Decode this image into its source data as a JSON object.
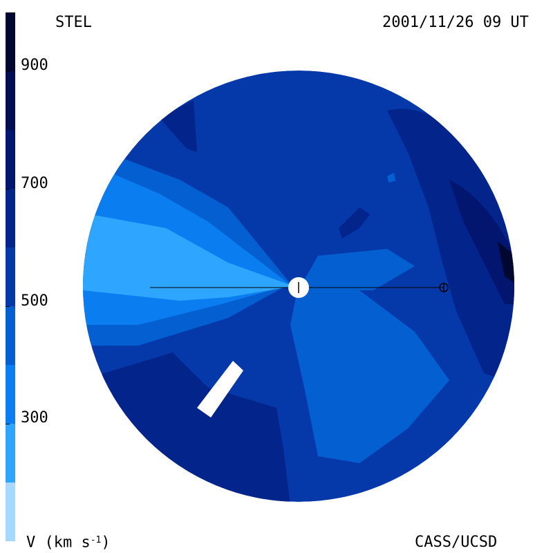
{
  "header": {
    "instrument": "STEL",
    "timestamp": "2001/11/26 09 UT"
  },
  "footer": {
    "unit_label_prefix": "V (km s",
    "unit_label_exp": "-1",
    "unit_label_suffix": ")",
    "credit": "CASS/UCSD"
  },
  "chart_data": {
    "type": "heatmap",
    "title": "",
    "colorbar": {
      "min": 100,
      "max": 1000,
      "ticks": [
        300,
        500,
        700,
        900
      ],
      "tick_labels": [
        "300",
        "500",
        "700",
        "900"
      ],
      "levels": [
        {
          "from": 100,
          "to": 200,
          "color": "#a8d8ff"
        },
        {
          "from": 200,
          "to": 300,
          "color": "#2ea6ff"
        },
        {
          "from": 300,
          "to": 400,
          "color": "#0a7ef0"
        },
        {
          "from": 400,
          "to": 500,
          "color": "#045fd0"
        },
        {
          "from": 500,
          "to": 600,
          "color": "#0538a8"
        },
        {
          "from": 600,
          "to": 700,
          "color": "#03248a"
        },
        {
          "from": 700,
          "to": 800,
          "color": "#021670"
        },
        {
          "from": 800,
          "to": 900,
          "color": "#020e50"
        },
        {
          "from": 900,
          "to": 1000,
          "color": "#010830"
        }
      ]
    },
    "colors": {
      "disk_background": "#0538a8",
      "sun": "#ffffff",
      "earth_line": "#000000",
      "gap": "#ffffff"
    }
  }
}
